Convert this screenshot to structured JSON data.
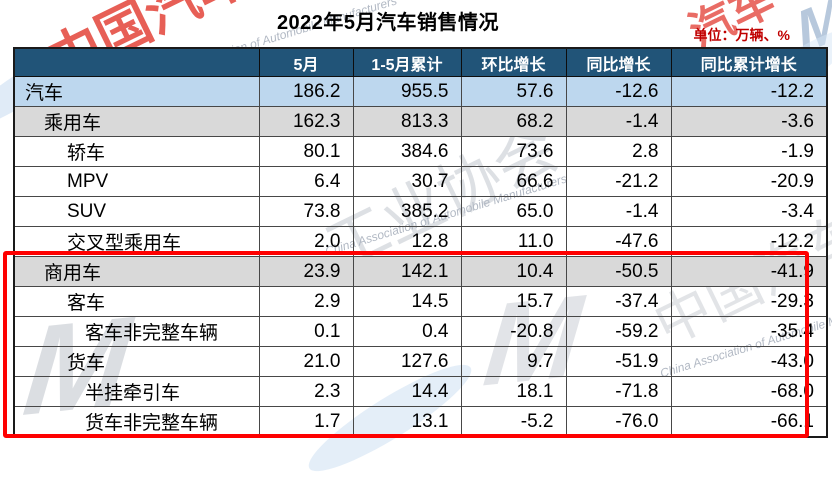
{
  "title": "2022年5月汽车销售情况",
  "unit_label": "单位：万辆、%",
  "colors": {
    "header_bg": "#215478",
    "header_text": "#FFFFFF",
    "row_highlight_blue": "#BDD7EE",
    "row_highlight_gray": "#D9D9D9",
    "unit_label_red": "#C00000",
    "highlight_box_red": "#FE0000"
  },
  "chart_data": {
    "type": "table",
    "title": "2022年5月汽车销售情况",
    "unit": "万辆、%",
    "columns": [
      "",
      "5月",
      "1-5月累计",
      "环比增长",
      "同比增长",
      "同比累计增长"
    ],
    "rows": [
      {
        "label": "汽车",
        "indent": 0,
        "bg": "blue",
        "values": [
          "186.2",
          "955.5",
          "57.6",
          "-12.6",
          "-12.2"
        ]
      },
      {
        "label": "乘用车",
        "indent": 1,
        "bg": "gray",
        "values": [
          "162.3",
          "813.3",
          "68.2",
          "-1.4",
          "-3.6"
        ]
      },
      {
        "label": "轿车",
        "indent": 2,
        "bg": "white",
        "values": [
          "80.1",
          "384.6",
          "73.6",
          "2.8",
          "-1.9"
        ]
      },
      {
        "label": "MPV",
        "indent": 2,
        "bg": "white",
        "values": [
          "6.4",
          "30.7",
          "66.6",
          "-21.2",
          "-20.9"
        ]
      },
      {
        "label": "SUV",
        "indent": 2,
        "bg": "white",
        "values": [
          "73.8",
          "385.2",
          "65.0",
          "-1.4",
          "-3.4"
        ]
      },
      {
        "label": "交叉型乘用车",
        "indent": 2,
        "bg": "white",
        "values": [
          "2.0",
          "12.8",
          "11.0",
          "-47.6",
          "-12.2"
        ]
      },
      {
        "label": "商用车",
        "indent": 1,
        "bg": "gray",
        "values": [
          "23.9",
          "142.1",
          "10.4",
          "-50.5",
          "-41.9"
        ]
      },
      {
        "label": "客车",
        "indent": 2,
        "bg": "white",
        "values": [
          "2.9",
          "14.5",
          "15.7",
          "-37.4",
          "-29.3"
        ]
      },
      {
        "label": "客车非完整车辆",
        "indent": 3,
        "bg": "white",
        "values": [
          "0.1",
          "0.4",
          "-20.8",
          "-59.2",
          "-35.4"
        ]
      },
      {
        "label": "货车",
        "indent": 2,
        "bg": "white",
        "values": [
          "21.0",
          "127.6",
          "9.7",
          "-51.9",
          "-43.0"
        ]
      },
      {
        "label": "半挂牵引车",
        "indent": 3,
        "bg": "white",
        "values": [
          "2.3",
          "14.4",
          "18.1",
          "-71.8",
          "-68.0"
        ]
      },
      {
        "label": "货车非完整车辆",
        "indent": 3,
        "bg": "white",
        "values": [
          "1.7",
          "13.1",
          "-5.2",
          "-76.0",
          "-66.1"
        ]
      }
    ],
    "highlighted_rows": [
      "商用车",
      "客车",
      "客车非完整车辆",
      "货车",
      "半挂牵引车",
      "货车非完整车辆"
    ]
  },
  "watermarks": {
    "cn_topleft": "中国汽车",
    "cn_topright": "汽车",
    "cn_center": "工业协会",
    "cn_right": "中国汽车",
    "en_script": "China Association of Automobile Manufacturers",
    "logo_glyph": "M"
  }
}
